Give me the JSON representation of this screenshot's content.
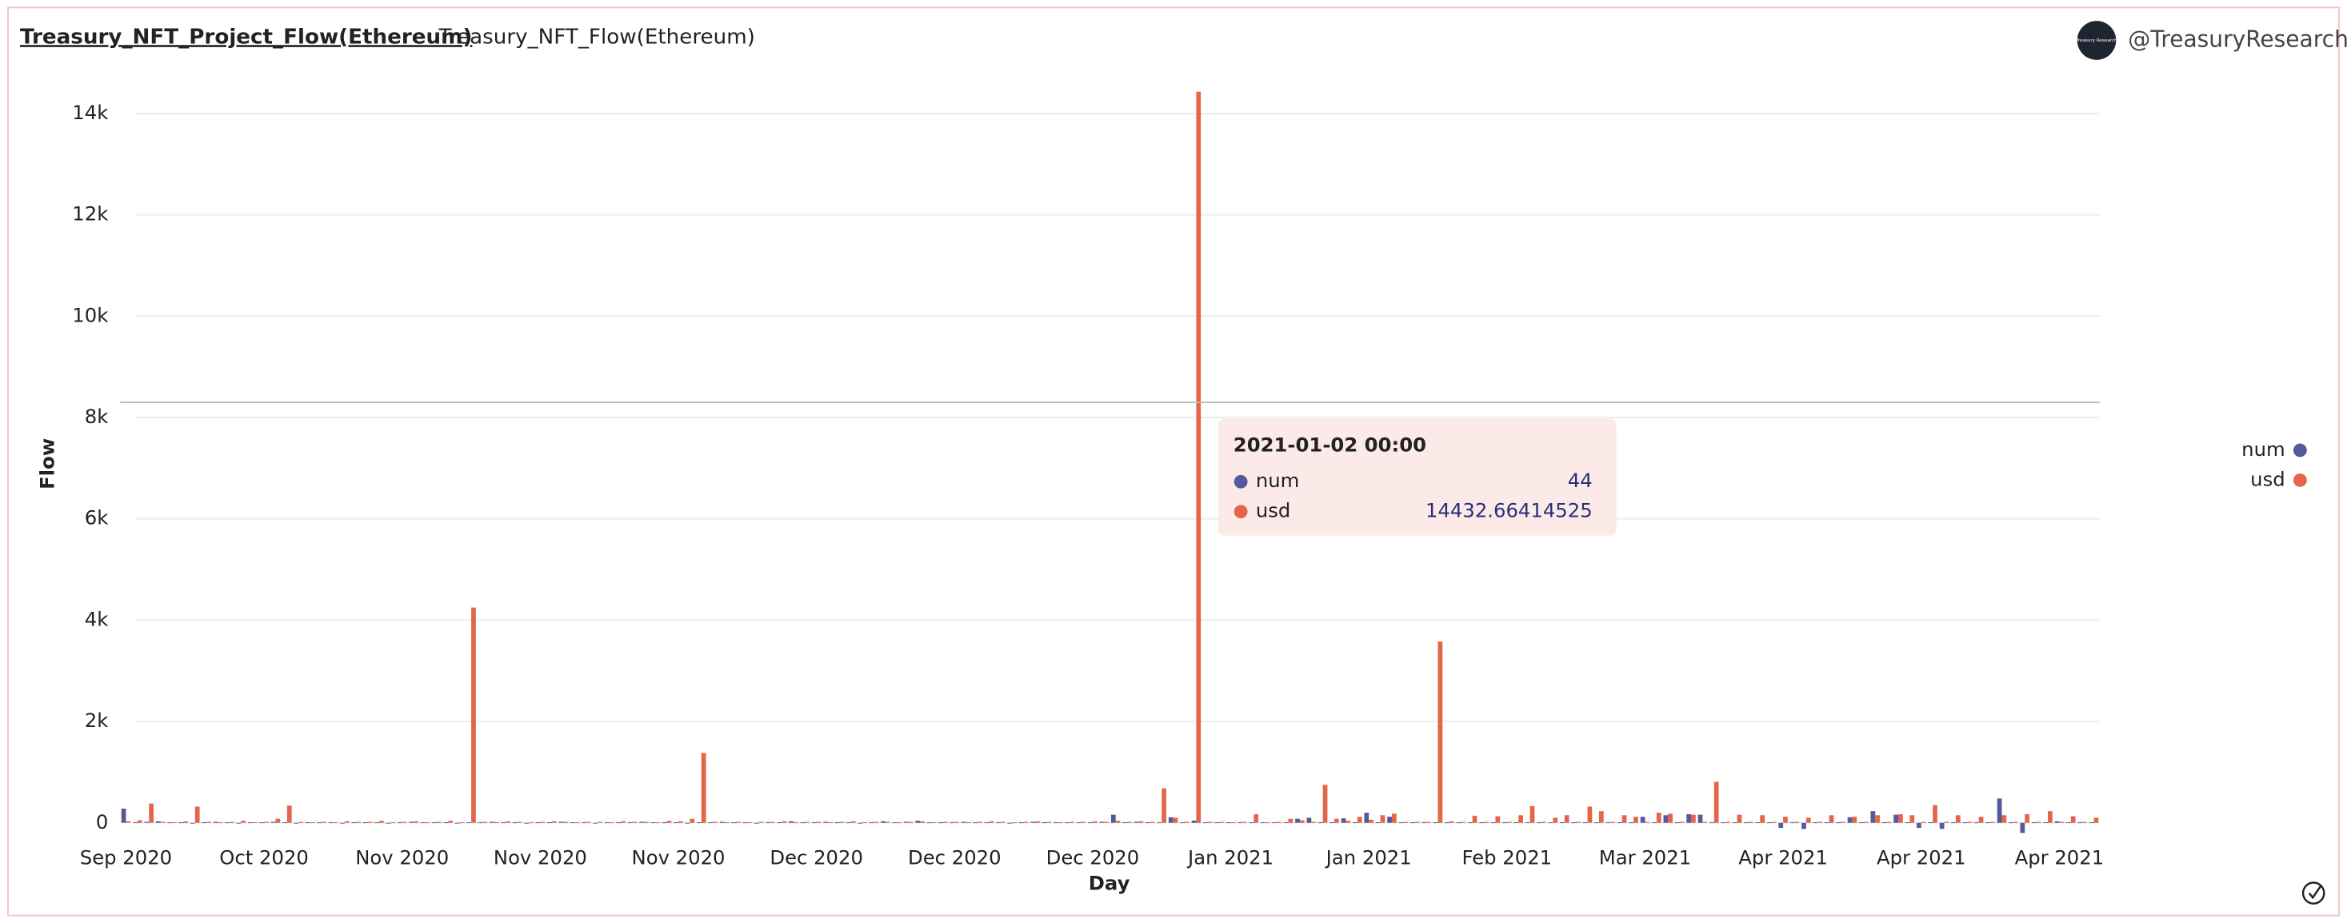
{
  "header": {
    "tabs": [
      "Treasury_NFT_Project_Flow(Ethereum)",
      "Treasury_NFT_Flow(Ethereum)"
    ],
    "account": "@TreasuryResearch",
    "avatar_text": "Treasury Research"
  },
  "chart_data": {
    "type": "bar",
    "ylabel": "Flow",
    "xlabel": "Day",
    "categories": [
      "Sep 2020",
      null,
      null,
      null,
      null,
      null,
      null,
      null,
      null,
      null,
      null,
      null,
      "Oct 2020",
      null,
      null,
      null,
      null,
      null,
      null,
      null,
      null,
      null,
      null,
      null,
      "Nov 2020",
      null,
      null,
      null,
      null,
      null,
      null,
      null,
      null,
      null,
      null,
      null,
      "Nov 2020",
      null,
      null,
      null,
      null,
      null,
      null,
      null,
      null,
      null,
      null,
      null,
      "Nov 2020",
      null,
      null,
      null,
      null,
      null,
      null,
      null,
      null,
      null,
      null,
      null,
      "Dec 2020",
      null,
      null,
      null,
      null,
      null,
      null,
      null,
      null,
      null,
      null,
      null,
      "Dec 2020",
      null,
      null,
      null,
      null,
      null,
      null,
      null,
      null,
      null,
      null,
      null,
      "Dec 2020",
      null,
      null,
      null,
      null,
      null,
      null,
      null,
      null,
      null,
      null,
      null,
      "Jan 2021",
      null,
      null,
      null,
      null,
      null,
      null,
      null,
      null,
      null,
      null,
      null,
      "Jan 2021",
      null,
      null,
      null,
      null,
      null,
      null,
      null,
      null,
      null,
      null,
      null,
      "Feb 2021",
      null,
      null,
      null,
      null,
      null,
      null,
      null,
      null,
      null,
      null,
      null,
      "Mar 2021",
      null,
      null,
      null,
      null,
      null,
      null,
      null,
      null,
      null,
      null,
      null,
      "Apr 2021",
      null,
      null,
      null,
      null,
      null,
      null,
      null,
      null,
      null,
      null,
      null,
      "Apr 2021",
      null,
      null,
      null,
      null,
      null,
      null,
      null,
      null,
      null,
      null,
      null,
      "Apr 2021",
      null,
      null,
      null
    ],
    "series": [
      {
        "name": "num",
        "color": "#545a9b",
        "values": [
          280,
          10,
          20,
          30,
          10,
          10,
          0,
          10,
          20,
          10,
          0,
          10,
          10,
          20,
          10,
          0,
          10,
          10,
          10,
          0,
          10,
          10,
          10,
          0,
          10,
          20,
          10,
          10,
          10,
          0,
          10,
          10,
          20,
          10,
          10,
          0,
          10,
          10,
          20,
          10,
          10,
          0,
          10,
          10,
          10,
          20,
          10,
          10,
          10,
          0,
          10,
          10,
          20,
          10,
          10,
          0,
          10,
          10,
          30,
          10,
          10,
          20,
          10,
          10,
          0,
          10,
          30,
          10,
          20,
          40,
          10,
          10,
          10,
          20,
          10,
          10,
          10,
          0,
          10,
          20,
          10,
          10,
          10,
          10,
          10,
          20,
          160,
          10,
          20,
          10,
          10,
          110,
          10,
          44,
          10,
          10,
          10,
          10,
          10,
          10,
          10,
          10,
          80,
          100,
          10,
          10,
          90,
          10,
          200,
          10,
          120,
          10,
          10,
          10,
          10,
          10,
          10,
          10,
          10,
          10,
          10,
          10,
          10,
          10,
          10,
          10,
          10,
          10,
          10,
          10,
          10,
          10,
          120,
          10,
          150,
          10,
          170,
          160,
          10,
          10,
          10,
          10,
          10,
          10,
          -100,
          10,
          -120,
          10,
          10,
          10,
          110,
          10,
          230,
          10,
          160,
          10,
          -100,
          10,
          -120,
          10,
          10,
          10,
          10,
          480,
          10,
          -200,
          10,
          10,
          30,
          10,
          10,
          10
        ]
      },
      {
        "name": "usd",
        "color": "#e4664a",
        "values": [
          30,
          50,
          380,
          20,
          10,
          30,
          320,
          20,
          10,
          20,
          40,
          10,
          20,
          80,
          340,
          20,
          10,
          20,
          10,
          30,
          20,
          20,
          40,
          10,
          20,
          30,
          10,
          20,
          40,
          10,
          4250,
          20,
          10,
          30,
          20,
          10,
          20,
          30,
          20,
          10,
          20,
          20,
          10,
          30,
          20,
          20,
          10,
          40,
          30,
          80,
          1380,
          20,
          10,
          20,
          10,
          20,
          20,
          30,
          10,
          20,
          20,
          10,
          20,
          30,
          10,
          20,
          20,
          10,
          20,
          30,
          10,
          20,
          20,
          10,
          20,
          30,
          20,
          10,
          20,
          30,
          20,
          10,
          20,
          20,
          30,
          20,
          40,
          20,
          30,
          20,
          680,
          100,
          20,
          14432.66414525,
          20,
          20,
          10,
          20,
          170,
          10,
          20,
          80,
          50,
          20,
          750,
          80,
          40,
          120,
          60,
          150,
          180,
          20,
          20,
          20,
          3580,
          30,
          20,
          140,
          20,
          130,
          20,
          150,
          330,
          20,
          100,
          150,
          20,
          320,
          230,
          20,
          150,
          120,
          20,
          200,
          180,
          20,
          160,
          20,
          810,
          20,
          160,
          20,
          150,
          20,
          120,
          20,
          100,
          20,
          150,
          20,
          120,
          20,
          150,
          20,
          170,
          150,
          20,
          350,
          20,
          150,
          20,
          120,
          20,
          150,
          20,
          170,
          20,
          230,
          20,
          130,
          20,
          100
        ]
      }
    ],
    "ylim": [
      -250,
      14500
    ],
    "yticks": [
      0,
      {
        "value": 2000,
        "label": "2k"
      },
      {
        "value": 4000,
        "label": "4k"
      },
      {
        "value": 6000,
        "label": "6k"
      },
      {
        "value": 8000,
        "label": "8k"
      },
      {
        "value": 10000,
        "label": "10k"
      },
      {
        "value": 12000,
        "label": "12k"
      },
      {
        "value": 14000,
        "label": "14k"
      }
    ],
    "grid": true,
    "legend": "right",
    "tooltip": {
      "title": "2021-01-02 00:00"
    }
  }
}
